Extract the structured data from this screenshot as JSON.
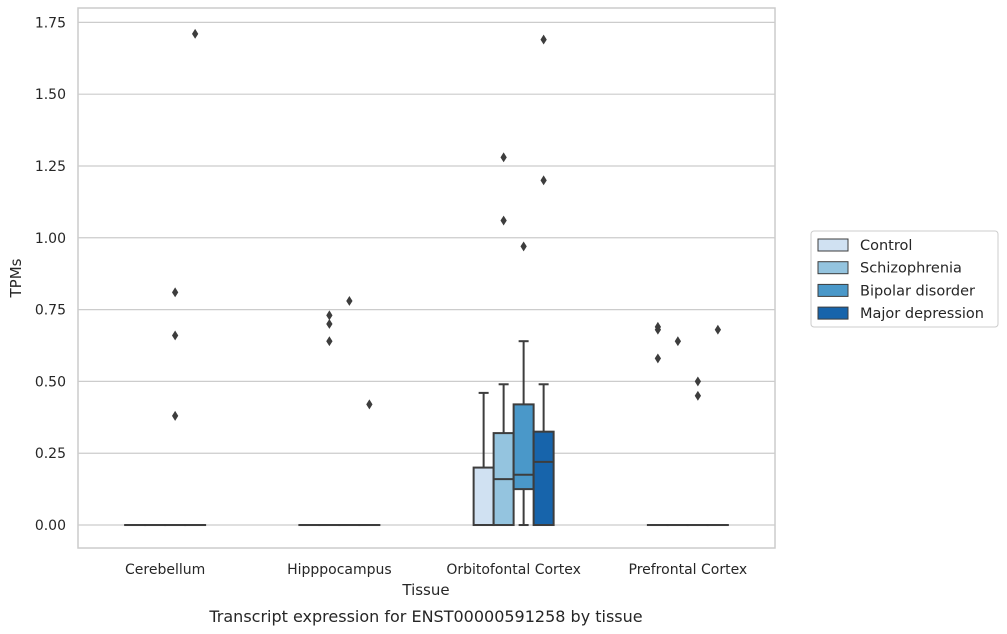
{
  "chart_data": {
    "type": "boxplot",
    "caption": "Transcript expression for ENST00000591258 by tissue",
    "xlabel": "Tissue",
    "ylabel": "TPMs",
    "ylim": [
      -0.08,
      1.8
    ],
    "yticks": [
      "0.00",
      "0.25",
      "0.50",
      "0.75",
      "1.00",
      "1.25",
      "1.50",
      "1.75"
    ],
    "ytick_values": [
      0,
      0.25,
      0.5,
      0.75,
      1.0,
      1.25,
      1.5,
      1.75
    ],
    "categories": [
      "Cerebellum",
      "Hipppocampus",
      "Orbitofontal Cortex",
      "Prefrontal Cortex"
    ],
    "grid": true,
    "legend_position": "right",
    "series": [
      {
        "name": "Control",
        "color": "#d0e1f2",
        "boxes": [
          {
            "q1": 0,
            "median": 0,
            "q3": 0,
            "whislo": 0,
            "whishi": 0,
            "fliers": []
          },
          {
            "q1": 0,
            "median": 0,
            "q3": 0,
            "whislo": 0,
            "whishi": 0,
            "fliers": []
          },
          {
            "q1": 0,
            "median": 0,
            "q3": 0.2,
            "whislo": 0,
            "whishi": 0.46,
            "fliers": []
          },
          {
            "q1": 0,
            "median": 0,
            "q3": 0,
            "whislo": 0,
            "whishi": 0,
            "fliers": [
              0.58,
              0.68,
              0.69
            ]
          }
        ]
      },
      {
        "name": "Schizophrenia",
        "color": "#94c4df",
        "boxes": [
          {
            "q1": 0,
            "median": 0,
            "q3": 0,
            "whislo": 0,
            "whishi": 0,
            "fliers": []
          },
          {
            "q1": 0,
            "median": 0,
            "q3": 0,
            "whislo": 0,
            "whishi": 0,
            "fliers": [
              0.64,
              0.7,
              0.73
            ]
          },
          {
            "q1": 0,
            "median": 0.16,
            "q3": 0.32,
            "whislo": 0,
            "whishi": 0.49,
            "fliers": [
              1.06,
              1.28
            ]
          },
          {
            "q1": 0,
            "median": 0,
            "q3": 0,
            "whislo": 0,
            "whishi": 0,
            "fliers": [
              0.64
            ]
          }
        ]
      },
      {
        "name": "Bipolar disorder",
        "color": "#4a98c9",
        "boxes": [
          {
            "q1": 0,
            "median": 0,
            "q3": 0,
            "whislo": 0,
            "whishi": 0,
            "fliers": [
              0.38,
              0.66,
              0.81
            ]
          },
          {
            "q1": 0,
            "median": 0,
            "q3": 0,
            "whislo": 0,
            "whishi": 0,
            "fliers": [
              0.78
            ]
          },
          {
            "q1": 0.125,
            "median": 0.175,
            "q3": 0.42,
            "whislo": 0,
            "whishi": 0.64,
            "fliers": [
              0.97
            ]
          },
          {
            "q1": 0,
            "median": 0,
            "q3": 0,
            "whislo": 0,
            "whishi": 0,
            "fliers": [
              0.45,
              0.5
            ]
          }
        ]
      },
      {
        "name": "Major depression",
        "color": "#1764ab",
        "boxes": [
          {
            "q1": 0,
            "median": 0,
            "q3": 0,
            "whislo": 0,
            "whishi": 0,
            "fliers": [
              1.71
            ]
          },
          {
            "q1": 0,
            "median": 0,
            "q3": 0,
            "whislo": 0,
            "whishi": 0,
            "fliers": [
              0.42
            ]
          },
          {
            "q1": 0,
            "median": 0.22,
            "q3": 0.325,
            "whislo": 0,
            "whishi": 0.49,
            "fliers": [
              1.2,
              1.69
            ]
          },
          {
            "q1": 0,
            "median": 0,
            "q3": 0,
            "whislo": 0,
            "whishi": 0,
            "fliers": [
              0.68
            ]
          }
        ]
      }
    ]
  }
}
